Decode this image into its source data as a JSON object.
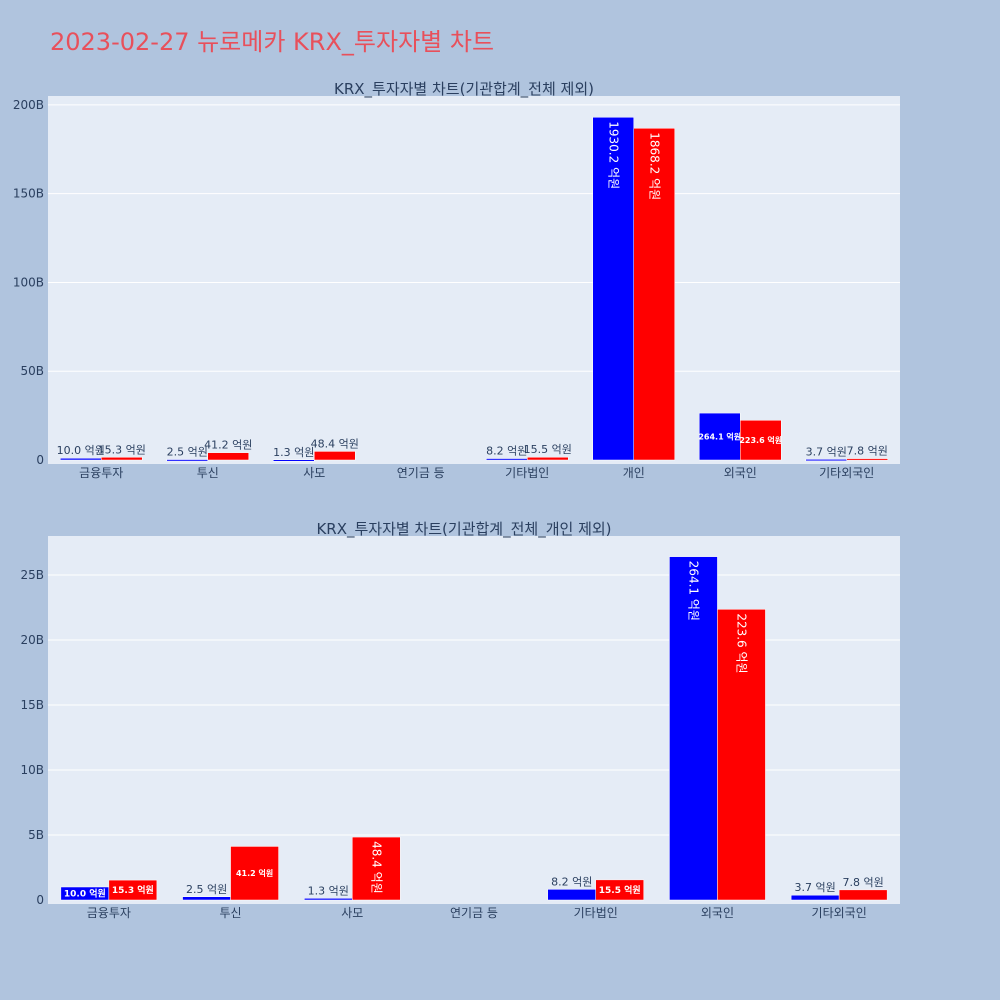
{
  "title": "2023-02-27 뉴로메카 KRX_투자자별 차트",
  "colors": {
    "background": "#b0c4de",
    "plot_bg": "#e5ecf6",
    "buy": "#0000ff",
    "sell": "#ff0000",
    "title": "#e8505b",
    "text": "#2a3f5f"
  },
  "chart_data": [
    {
      "type": "bar",
      "title": "KRX_투자자별 차트(기관합계_전체 제외)",
      "categories": [
        "금융투자",
        "투신",
        "사모",
        "연기금 등",
        "기타법인",
        "개인",
        "외국인",
        "기타외국인"
      ],
      "ylim": [
        0,
        205
      ],
      "yticks": [
        0,
        50,
        100,
        150,
        200
      ],
      "ytick_labels": [
        "0",
        "50B",
        "100B",
        "150B",
        "200B"
      ],
      "grid": true,
      "series": [
        {
          "values": [
            1.0,
            0.25,
            0.13,
            0,
            0.82,
            193.02,
            26.41,
            0.37
          ],
          "labels": [
            "10.0 억원",
            "2.5 억원",
            "1.3 억원",
            "",
            "8.2 억원",
            "1930.2 억원",
            "264.1 억원",
            "3.7 억원"
          ]
        },
        {
          "values": [
            1.53,
            4.12,
            4.84,
            0,
            1.55,
            186.82,
            22.36,
            0.78
          ],
          "labels": [
            "15.3 억원",
            "41.2 억원",
            "48.4 억원",
            "",
            "15.5 억원",
            "1868.2 억원",
            "223.6 억원",
            "7.8 억원"
          ]
        }
      ]
    },
    {
      "type": "bar",
      "title": "KRX_투자자별 차트(기관합계_전체_개인 제외)",
      "categories": [
        "금융투자",
        "투신",
        "사모",
        "연기금 등",
        "기타법인",
        "외국인",
        "기타외국인"
      ],
      "ylim": [
        0,
        28
      ],
      "yticks": [
        0,
        5,
        10,
        15,
        20,
        25
      ],
      "ytick_labels": [
        "0",
        "5B",
        "10B",
        "15B",
        "20B",
        "25B"
      ],
      "grid": true,
      "series": [
        {
          "values": [
            1.0,
            0.25,
            0.13,
            0,
            0.82,
            26.41,
            0.37
          ],
          "labels": [
            "10.0 억원",
            "2.5 억원",
            "1.3 억원",
            "",
            "8.2 억원",
            "264.1 억원",
            "3.7 억원"
          ]
        },
        {
          "values": [
            1.53,
            4.12,
            4.84,
            0,
            1.55,
            22.36,
            0.78
          ],
          "labels": [
            "15.3 억원",
            "41.2 억원",
            "48.4 억원",
            "",
            "15.5 억원",
            "223.6 억원",
            "7.8 억원"
          ]
        }
      ]
    }
  ]
}
